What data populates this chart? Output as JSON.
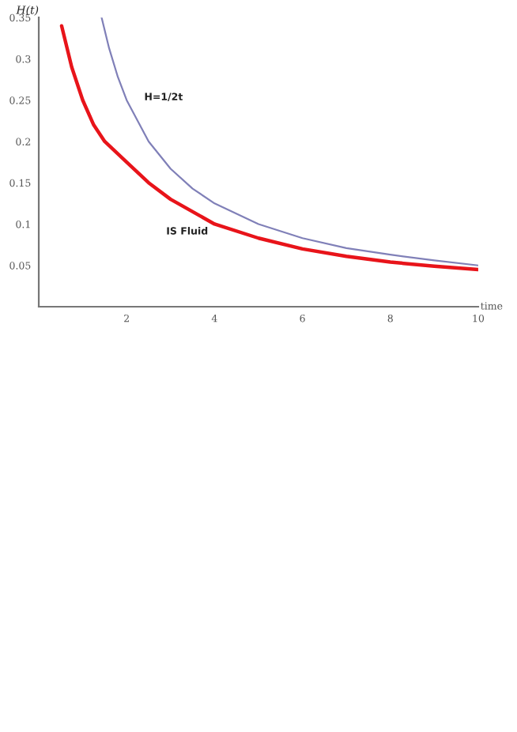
{
  "chart_data": {
    "type": "line",
    "xlabel": "time",
    "ylabel": "H(t)",
    "xlim": [
      0,
      10
    ],
    "ylim": [
      0,
      0.35
    ],
    "xticks": [
      2,
      4,
      6,
      8,
      10
    ],
    "yticks": [
      0.05,
      0.1,
      0.15,
      0.2,
      0.25,
      0.3,
      0.35
    ],
    "grid": false,
    "legend": false,
    "line_style": "solid",
    "series": [
      {
        "name": "IS Fluid",
        "color": "#e8141a",
        "x": [
          0.52,
          0.75,
          1,
          1.25,
          1.5,
          2,
          2.5,
          3,
          4,
          5,
          6,
          7,
          8,
          9,
          10
        ],
        "values": [
          0.34,
          0.29,
          0.25,
          0.22,
          0.2,
          0.175,
          0.15,
          0.13,
          0.1,
          0.083,
          0.07,
          0.061,
          0.054,
          0.049,
          0.045
        ]
      },
      {
        "name": "H=1/2t",
        "color": "#8080b8",
        "x": [
          1.43,
          1.6,
          1.8,
          2,
          2.5,
          3,
          3.5,
          4,
          5,
          6,
          7,
          8,
          9,
          10
        ],
        "values": [
          0.35,
          0.313,
          0.278,
          0.25,
          0.2,
          0.167,
          0.143,
          0.125,
          0.1,
          0.083,
          0.071,
          0.063,
          0.056,
          0.05
        ]
      }
    ]
  }
}
